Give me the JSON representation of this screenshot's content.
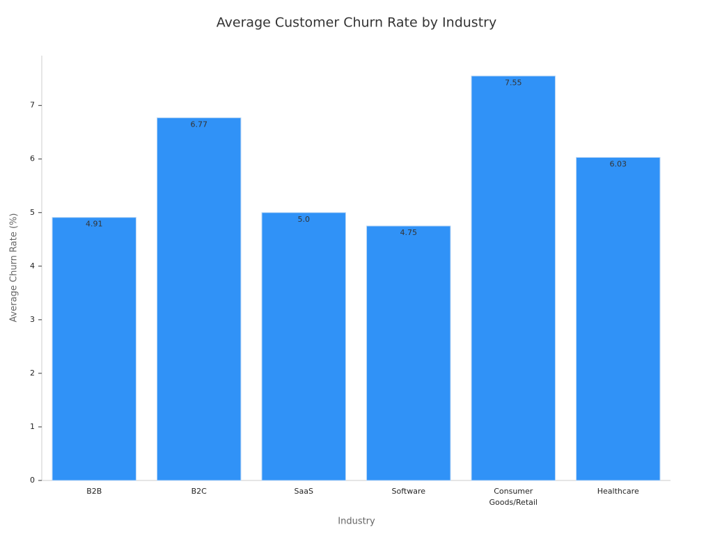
{
  "chart_data": {
    "type": "bar",
    "title": "Average Customer Churn Rate by Industry",
    "x_label": "Industry",
    "y_label": "Average Churn Rate (%)",
    "categories": [
      "B2B",
      "B2C",
      "SaaS",
      "Software",
      "Consumer Goods/Retail",
      "Healthcare"
    ],
    "values": [
      4.91,
      6.77,
      5.0,
      4.75,
      7.55,
      6.03
    ],
    "value_labels": [
      "4.91",
      "6.77",
      "5.0",
      "4.75",
      "7.55",
      "6.03"
    ],
    "color": "#3092f7",
    "ylim": [
      0,
      7.93
    ],
    "yticks": [
      0,
      1,
      2,
      3,
      4,
      5,
      6,
      7
    ],
    "grid": false
  }
}
